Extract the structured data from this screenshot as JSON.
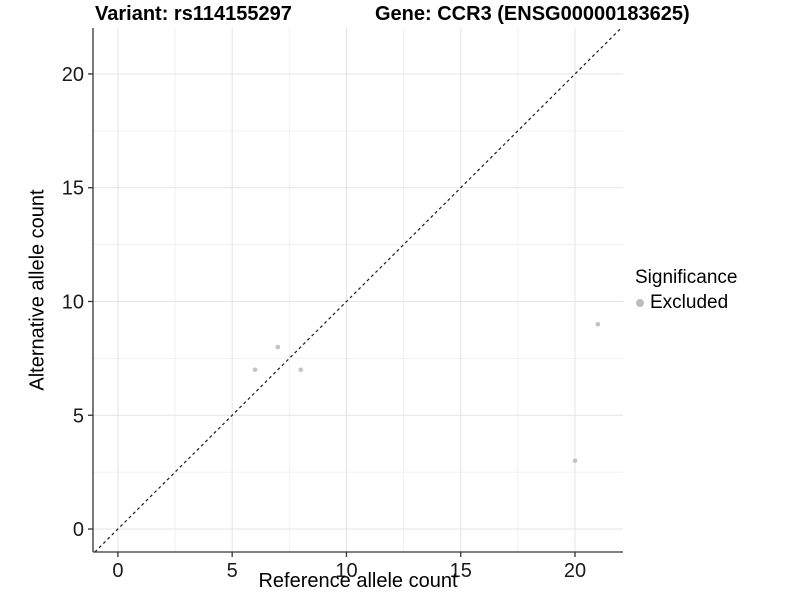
{
  "titles": {
    "variant": "Variant: rs114155297",
    "gene": "Gene: CCR3 (ENSG00000183625)"
  },
  "legend": {
    "title": "Significance",
    "items": [
      {
        "label": "Excluded",
        "color": "#bdbdbd"
      }
    ]
  },
  "colors": {
    "point": "#c3c3c3",
    "identity_line": "#1a1a1a",
    "axis_line": "#333333",
    "tick_label": "#1a1a1a",
    "grid_major": "#e4e4e4",
    "grid_minor": "#f1f1f1",
    "background": "#ffffff"
  },
  "chart_data": {
    "type": "scatter",
    "title": "Variant: rs114155297 — Gene: CCR3 (ENSG00000183625)",
    "xlabel": "Reference allele count",
    "ylabel": "Alternative allele count",
    "xlim": [
      -1.09,
      22.1
    ],
    "ylim": [
      -1.01,
      22.02
    ],
    "x_ticks": [
      0,
      5,
      10,
      15,
      20
    ],
    "y_ticks": [
      0,
      5,
      10,
      15,
      20
    ],
    "x_minor": [
      2.5,
      7.5,
      12.5,
      17.5
    ],
    "y_minor": [
      2.5,
      7.5,
      12.5,
      17.5
    ],
    "grid": "major+minor",
    "legend_position": "right",
    "identity_line": {
      "type": "abline",
      "slope": 1,
      "intercept": 0,
      "style": "dashed"
    },
    "series": [
      {
        "name": "Excluded",
        "points": [
          [
            6,
            7
          ],
          [
            7,
            8
          ],
          [
            8,
            7
          ],
          [
            20,
            3
          ],
          [
            21,
            9
          ]
        ]
      }
    ]
  }
}
